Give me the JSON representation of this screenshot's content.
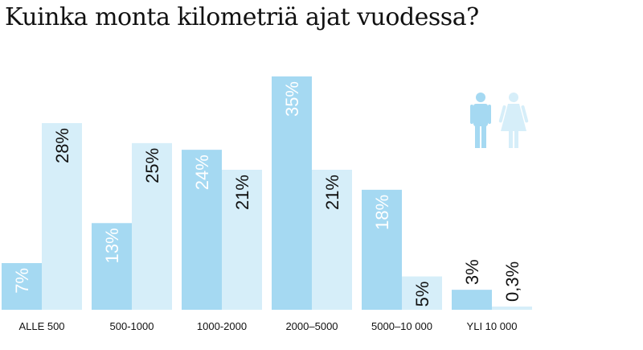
{
  "title": "Kuinka monta kilometriä ajat vuodessa?",
  "colors": {
    "male": "#a5d9f2",
    "female": "#d6eef9",
    "male_label": "#ffffff",
    "female_label": "#111111"
  },
  "legend": {
    "male_icon": "man-icon",
    "female_icon": "woman-icon"
  },
  "chart_data": {
    "type": "bar",
    "categories": [
      "ALLE 500",
      "500-1000",
      "1000-2000",
      "2000–5000",
      "5000–10 000",
      "YLI 10 000"
    ],
    "series": [
      {
        "values": [
          7,
          13,
          24,
          35,
          18,
          3
        ],
        "labels": [
          "7%",
          "13%",
          "24%",
          "35%",
          "18%",
          "3%"
        ]
      },
      {
        "values": [
          28,
          25,
          21,
          21,
          5,
          0.3
        ],
        "labels": [
          "28%",
          "25%",
          "21%",
          "21%",
          "5%",
          "0,3%"
        ]
      }
    ],
    "ylim": [
      0,
      35
    ],
    "grid": false,
    "legend_position": "top-right"
  }
}
